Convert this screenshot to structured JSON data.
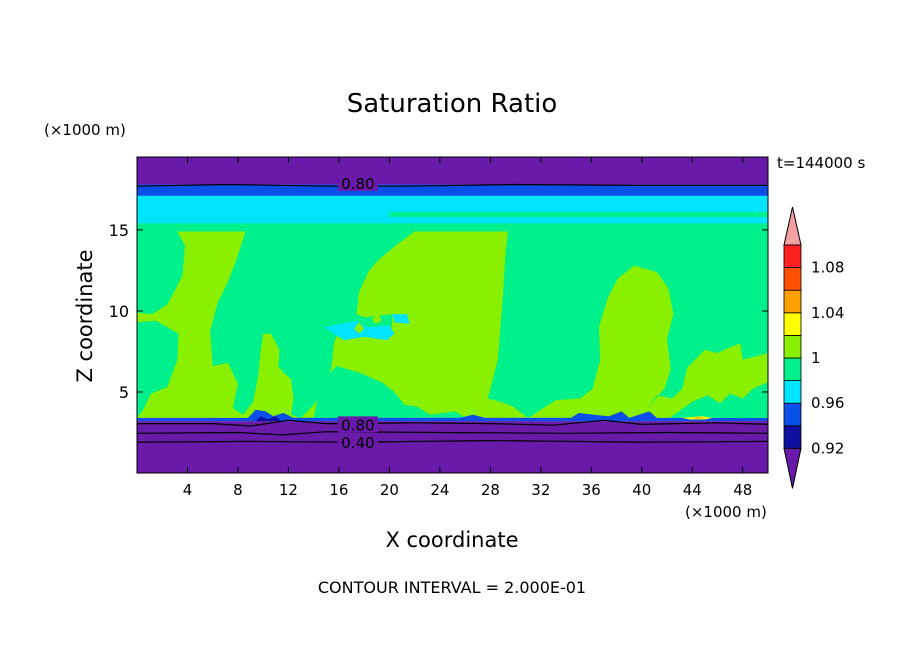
{
  "chart_data": {
    "type": "heatmap",
    "title": "Saturation Ratio",
    "xlabel": "X coordinate",
    "ylabel": "Z coordinate",
    "x_unit": "(×1000 m)",
    "y_unit": "(×1000 m)",
    "time_label": "t=144000 s",
    "footer": "CONTOUR INTERVAL = 2.000E-01",
    "xlim": [
      0,
      50
    ],
    "ylim": [
      0,
      19.5
    ],
    "x_ticks": [
      4,
      8,
      12,
      16,
      20,
      24,
      28,
      32,
      36,
      40,
      44,
      48
    ],
    "x_tick_labels": [
      "4",
      "8",
      "12",
      "16",
      "20",
      "24",
      "28",
      "32",
      "36",
      "40",
      "44",
      "48"
    ],
    "y_ticks": [
      5,
      10,
      15
    ],
    "y_tick_labels": [
      "5",
      "10",
      "15"
    ],
    "contour_labels": [
      {
        "text": "0.80",
        "x": 17.5,
        "z": 17.9
      },
      {
        "text": "0.80",
        "x": 17.5,
        "z": 3.0
      },
      {
        "text": "0.40",
        "x": 17.5,
        "z": 1.9
      }
    ],
    "colorbar": {
      "levels": [
        {
          "min": null,
          "max": 0.92,
          "color": "#6a1aa8"
        },
        {
          "min": 0.92,
          "max": 0.94,
          "color": "#1010a0"
        },
        {
          "min": 0.94,
          "max": 0.96,
          "color": "#0a4fe8"
        },
        {
          "min": 0.96,
          "max": 0.98,
          "color": "#00e5ff"
        },
        {
          "min": 0.98,
          "max": 1.0,
          "color": "#00f08c"
        },
        {
          "min": 1.0,
          "max": 1.02,
          "color": "#88f000"
        },
        {
          "min": 1.02,
          "max": 1.04,
          "color": "#ffff00"
        },
        {
          "min": 1.04,
          "max": 1.06,
          "color": "#ffa000"
        },
        {
          "min": 1.06,
          "max": 1.08,
          "color": "#ff5000"
        },
        {
          "min": 1.08,
          "max": 1.1,
          "color": "#ff2020"
        },
        {
          "min": 1.1,
          "max": null,
          "color": "#f4a0a0"
        }
      ],
      "labels": [
        "0.92",
        "0.96",
        "1",
        "1.04",
        "1.08"
      ]
    },
    "bands": [
      {
        "z0": 17.8,
        "z1": 19.5,
        "color": "#6a1aa8"
      },
      {
        "z0": 17.1,
        "z1": 17.8,
        "color": "#0a4fe8"
      },
      {
        "z0": 15.4,
        "z1": 17.1,
        "color": "#00e5ff"
      },
      {
        "z0": 14.9,
        "z1": 15.4,
        "color": "#0a4fe8"
      },
      {
        "z0": 3.4,
        "z1": 14.9,
        "color": "#88f000"
      },
      {
        "z0": 3.2,
        "z1": 3.4,
        "color": "#0a4fe8"
      },
      {
        "z0": 0,
        "z1": 3.2,
        "color": "#6a1aa8"
      }
    ],
    "regions": [
      {
        "color": "#00f08c",
        "points": [
          [
            0,
            14.9
          ],
          [
            3.2,
            14.9
          ],
          [
            3.8,
            14
          ],
          [
            3.6,
            12.2
          ],
          [
            3.1,
            11.4
          ],
          [
            2.4,
            10.4
          ],
          [
            1.2,
            9.8
          ],
          [
            0,
            9.9
          ]
        ]
      },
      {
        "color": "#00f08c",
        "points": [
          [
            0,
            9.3
          ],
          [
            1.5,
            9.4
          ],
          [
            3.3,
            8.6
          ],
          [
            3.2,
            7.0
          ],
          [
            2.4,
            5.3
          ],
          [
            1.1,
            4.9
          ],
          [
            0.5,
            3.9
          ],
          [
            0,
            3.4
          ]
        ]
      },
      {
        "color": "#00f08c",
        "points": [
          [
            8.6,
            14.9
          ],
          [
            22,
            14.9
          ],
          [
            20.6,
            14.1
          ],
          [
            19.2,
            13.2
          ],
          [
            18.4,
            12.5
          ],
          [
            17.6,
            11.2
          ],
          [
            17.4,
            9.8
          ],
          [
            18,
            9.6
          ],
          [
            20.2,
            9.8
          ],
          [
            20.2,
            9.0
          ],
          [
            17.6,
            8.8
          ],
          [
            16.1,
            9.0
          ],
          [
            15.6,
            8.0
          ],
          [
            15.4,
            6.5
          ],
          [
            14.8,
            5.2
          ],
          [
            14.0,
            4.2
          ],
          [
            13.0,
            3.4
          ],
          [
            12.2,
            3.6
          ],
          [
            12.4,
            4.6
          ],
          [
            12.2,
            5.8
          ],
          [
            11.6,
            6.2
          ],
          [
            11.2,
            6.6
          ],
          [
            11.3,
            7.6
          ],
          [
            10.6,
            8.6
          ],
          [
            10,
            8.6
          ],
          [
            9.8,
            7.6
          ],
          [
            9.6,
            6.0
          ],
          [
            9.2,
            4.4
          ],
          [
            8.4,
            3.6
          ],
          [
            7.6,
            4.0
          ],
          [
            8.0,
            5.5
          ],
          [
            7.2,
            6.8
          ],
          [
            6.0,
            6.6
          ],
          [
            5.8,
            8.8
          ],
          [
            6.4,
            10.5
          ],
          [
            7.2,
            11.8
          ],
          [
            7.9,
            13.2
          ]
        ]
      },
      {
        "color": "#00f08c",
        "points": [
          [
            11.2,
            8.2
          ],
          [
            12.8,
            8.8
          ],
          [
            13.0,
            7.6
          ],
          [
            13.6,
            6.6
          ],
          [
            13.0,
            6.0
          ],
          [
            12.4,
            6.4
          ],
          [
            11.6,
            6.8
          ]
        ]
      },
      {
        "color": "#00f08c",
        "points": [
          [
            14.5,
            5.5
          ],
          [
            15.8,
            6.6
          ],
          [
            17.6,
            6.2
          ],
          [
            19.4,
            5.6
          ],
          [
            20.4,
            5.0
          ],
          [
            21.2,
            4.2
          ],
          [
            22.2,
            4.1
          ],
          [
            23.2,
            3.6
          ],
          [
            25.2,
            3.8
          ],
          [
            26.0,
            3.4
          ],
          [
            14.0,
            3.4
          ]
        ]
      },
      {
        "color": "#00f08c",
        "points": [
          [
            29.4,
            14.9
          ],
          [
            50,
            14.9
          ],
          [
            50,
            7.4
          ],
          [
            48.0,
            7.0
          ],
          [
            47.8,
            8.0
          ],
          [
            46.8,
            7.7
          ],
          [
            46.0,
            7.4
          ],
          [
            45.0,
            7.6
          ],
          [
            43.6,
            6.5
          ],
          [
            43.2,
            5.2
          ],
          [
            42.4,
            4.6
          ],
          [
            41.2,
            4.8
          ],
          [
            40.4,
            4.0
          ],
          [
            41.8,
            5.2
          ],
          [
            42.3,
            6.4
          ],
          [
            42.0,
            8.3
          ],
          [
            42.5,
            9.8
          ],
          [
            42.1,
            11.4
          ],
          [
            41.2,
            12.4
          ],
          [
            39.4,
            12.8
          ],
          [
            38.1,
            12.0
          ],
          [
            37.3,
            10.8
          ],
          [
            36.6,
            9.0
          ],
          [
            36.7,
            7.0
          ],
          [
            36.1,
            5.2
          ],
          [
            35.1,
            4.6
          ],
          [
            33.2,
            4.5
          ],
          [
            32.6,
            4.2
          ],
          [
            31.0,
            3.4
          ],
          [
            29.8,
            4.1
          ],
          [
            28.8,
            4.4
          ],
          [
            27.8,
            4.6
          ],
          [
            28.6,
            7.0
          ],
          [
            29.0,
            11.0
          ],
          [
            29.2,
            13.5
          ]
        ]
      },
      {
        "color": "#00f08c",
        "points": [
          [
            42.2,
            3.4
          ],
          [
            50,
            3.4
          ],
          [
            50,
            5.6
          ],
          [
            48.8,
            5.2
          ],
          [
            48.0,
            4.6
          ],
          [
            47.0,
            4.9
          ],
          [
            46.2,
            4.3
          ],
          [
            45.2,
            4.8
          ],
          [
            44.0,
            4.4
          ]
        ]
      },
      {
        "color": "#00f08c",
        "points": [
          [
            0,
            15.4
          ],
          [
            50,
            15.4
          ],
          [
            50,
            14.9
          ],
          [
            0,
            14.9
          ]
        ]
      },
      {
        "color": "#00f08c",
        "points": [
          [
            20,
            16.1
          ],
          [
            50,
            16.1
          ],
          [
            50,
            15.8
          ],
          [
            20,
            15.8
          ]
        ]
      },
      {
        "color": "#00e5ff",
        "points": [
          [
            14.8,
            9.0
          ],
          [
            17.4,
            9.4
          ],
          [
            18.2,
            9.0
          ],
          [
            20.0,
            9.1
          ],
          [
            20.4,
            8.6
          ],
          [
            19.8,
            8.2
          ],
          [
            18.0,
            8.4
          ],
          [
            16.4,
            8.2
          ]
        ]
      },
      {
        "color": "#00e5ff",
        "points": [
          [
            20.2,
            9.8
          ],
          [
            21.4,
            9.8
          ],
          [
            21.6,
            9.2
          ],
          [
            20.4,
            9.3
          ]
        ]
      },
      {
        "color": "#88f000",
        "points": [
          [
            17.2,
            8.9
          ],
          [
            17.6,
            9.3
          ],
          [
            18.0,
            8.9
          ],
          [
            17.6,
            8.6
          ]
        ]
      },
      {
        "color": "#88f000",
        "points": [
          [
            18.6,
            9.5
          ],
          [
            19.1,
            9.9
          ],
          [
            19.4,
            9.4
          ],
          [
            18.9,
            9.2
          ]
        ]
      },
      {
        "color": "#0a4fe8",
        "points": [
          [
            8.8,
            3.4
          ],
          [
            9.4,
            3.9
          ],
          [
            10.2,
            3.8
          ],
          [
            10.8,
            3.5
          ],
          [
            11.6,
            3.7
          ],
          [
            12.4,
            3.4
          ],
          [
            25.6,
            3.4
          ],
          [
            26.6,
            3.6
          ],
          [
            27.6,
            3.4
          ],
          [
            34.4,
            3.4
          ],
          [
            35.0,
            3.7
          ],
          [
            36.2,
            3.6
          ],
          [
            37.4,
            3.5
          ],
          [
            38.4,
            3.8
          ],
          [
            39.0,
            3.4
          ],
          [
            40.6,
            3.8
          ],
          [
            41.2,
            3.4
          ],
          [
            41.4,
            3.2
          ],
          [
            8.8,
            3.2
          ]
        ]
      },
      {
        "color": "#1010a0",
        "points": [
          [
            9.4,
            3.2
          ],
          [
            9.8,
            3.5
          ],
          [
            10.4,
            3.3
          ],
          [
            11.0,
            3.5
          ],
          [
            11.4,
            3.2
          ]
        ]
      },
      {
        "color": "#ffff00",
        "points": [
          [
            43.2,
            3.4
          ],
          [
            44.8,
            3.5
          ],
          [
            45.6,
            3.4
          ],
          [
            45.0,
            3.3
          ],
          [
            43.8,
            3.3
          ]
        ]
      },
      {
        "color": "#ffa000",
        "points": [
          [
            44.0,
            3.4
          ],
          [
            44.6,
            3.45
          ],
          [
            45.0,
            3.4
          ],
          [
            44.4,
            3.35
          ]
        ]
      }
    ],
    "contour_lines": [
      {
        "points": [
          [
            0,
            17.7
          ],
          [
            7.2,
            17.8
          ],
          [
            15.4,
            17.7
          ],
          [
            21.2,
            17.7
          ],
          [
            30.0,
            17.8
          ],
          [
            40.0,
            17.75
          ],
          [
            50,
            17.75
          ]
        ]
      },
      {
        "points": [
          [
            0,
            3.05
          ],
          [
            6.0,
            3.05
          ],
          [
            9.0,
            2.9
          ],
          [
            12.0,
            3.25
          ],
          [
            15.0,
            3.05
          ],
          [
            22.0,
            3.1
          ],
          [
            28.0,
            3.05
          ],
          [
            33.0,
            2.95
          ],
          [
            37.0,
            3.25
          ],
          [
            40.0,
            3.0
          ],
          [
            46.0,
            3.1
          ],
          [
            50,
            3.0
          ]
        ]
      },
      {
        "points": [
          [
            0,
            2.45
          ],
          [
            8.0,
            2.5
          ],
          [
            11.5,
            2.35
          ],
          [
            15.0,
            2.55
          ],
          [
            24.0,
            2.5
          ],
          [
            34.0,
            2.45
          ],
          [
            42.0,
            2.5
          ],
          [
            50,
            2.45
          ]
        ]
      },
      {
        "points": [
          [
            0,
            1.9
          ],
          [
            9.0,
            1.95
          ],
          [
            17.0,
            1.9
          ],
          [
            28.0,
            2.0
          ],
          [
            40.0,
            1.9
          ],
          [
            50,
            1.95
          ]
        ]
      }
    ],
    "grid": false,
    "legend": "right"
  }
}
